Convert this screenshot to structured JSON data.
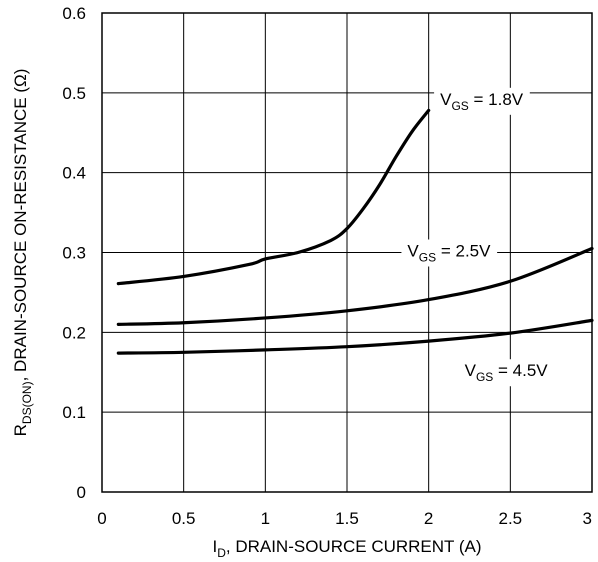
{
  "chart_data": {
    "type": "line",
    "title": "",
    "xlabel_main": "I",
    "xlabel_sub": "D",
    "xlabel_rest": ", DRAIN-SOURCE CURRENT (A)",
    "ylabel_main": "R",
    "ylabel_sub": "DS(ON)",
    "ylabel_rest": ", DRAIN-SOURCE ON-RESISTANCE (Ω)",
    "xlim": [
      0,
      3
    ],
    "ylim": [
      0,
      0.6
    ],
    "x_ticks": [
      "0",
      "0.5",
      "1",
      "1.5",
      "2",
      "2.5",
      "3"
    ],
    "y_ticks": [
      "0",
      "0.1",
      "0.2",
      "0.3",
      "0.4",
      "0.5",
      "0.6"
    ],
    "grid": true,
    "series": [
      {
        "label_main": "V",
        "label_sub": "GS",
        "label_rest": " = 1.8V",
        "x": [
          0.1,
          0.5,
          0.9,
          1.0,
          1.2,
          1.4,
          1.5,
          1.6,
          1.7,
          1.8,
          1.9,
          2.0
        ],
        "y": [
          0.261,
          0.27,
          0.285,
          0.292,
          0.3,
          0.315,
          0.33,
          0.355,
          0.385,
          0.42,
          0.452,
          0.478
        ]
      },
      {
        "label_main": "V",
        "label_sub": "GS",
        "label_rest": " = 2.5V",
        "x": [
          0.1,
          0.5,
          1.0,
          1.5,
          2.0,
          2.5,
          3.0
        ],
        "y": [
          0.21,
          0.212,
          0.218,
          0.227,
          0.241,
          0.264,
          0.305
        ]
      },
      {
        "label_main": "V",
        "label_sub": "GS",
        "label_rest": " = 4.5V",
        "x": [
          0.1,
          0.5,
          1.0,
          1.5,
          2.0,
          2.5,
          3.0
        ],
        "y": [
          0.174,
          0.175,
          0.178,
          0.182,
          0.189,
          0.199,
          0.215
        ]
      }
    ]
  }
}
